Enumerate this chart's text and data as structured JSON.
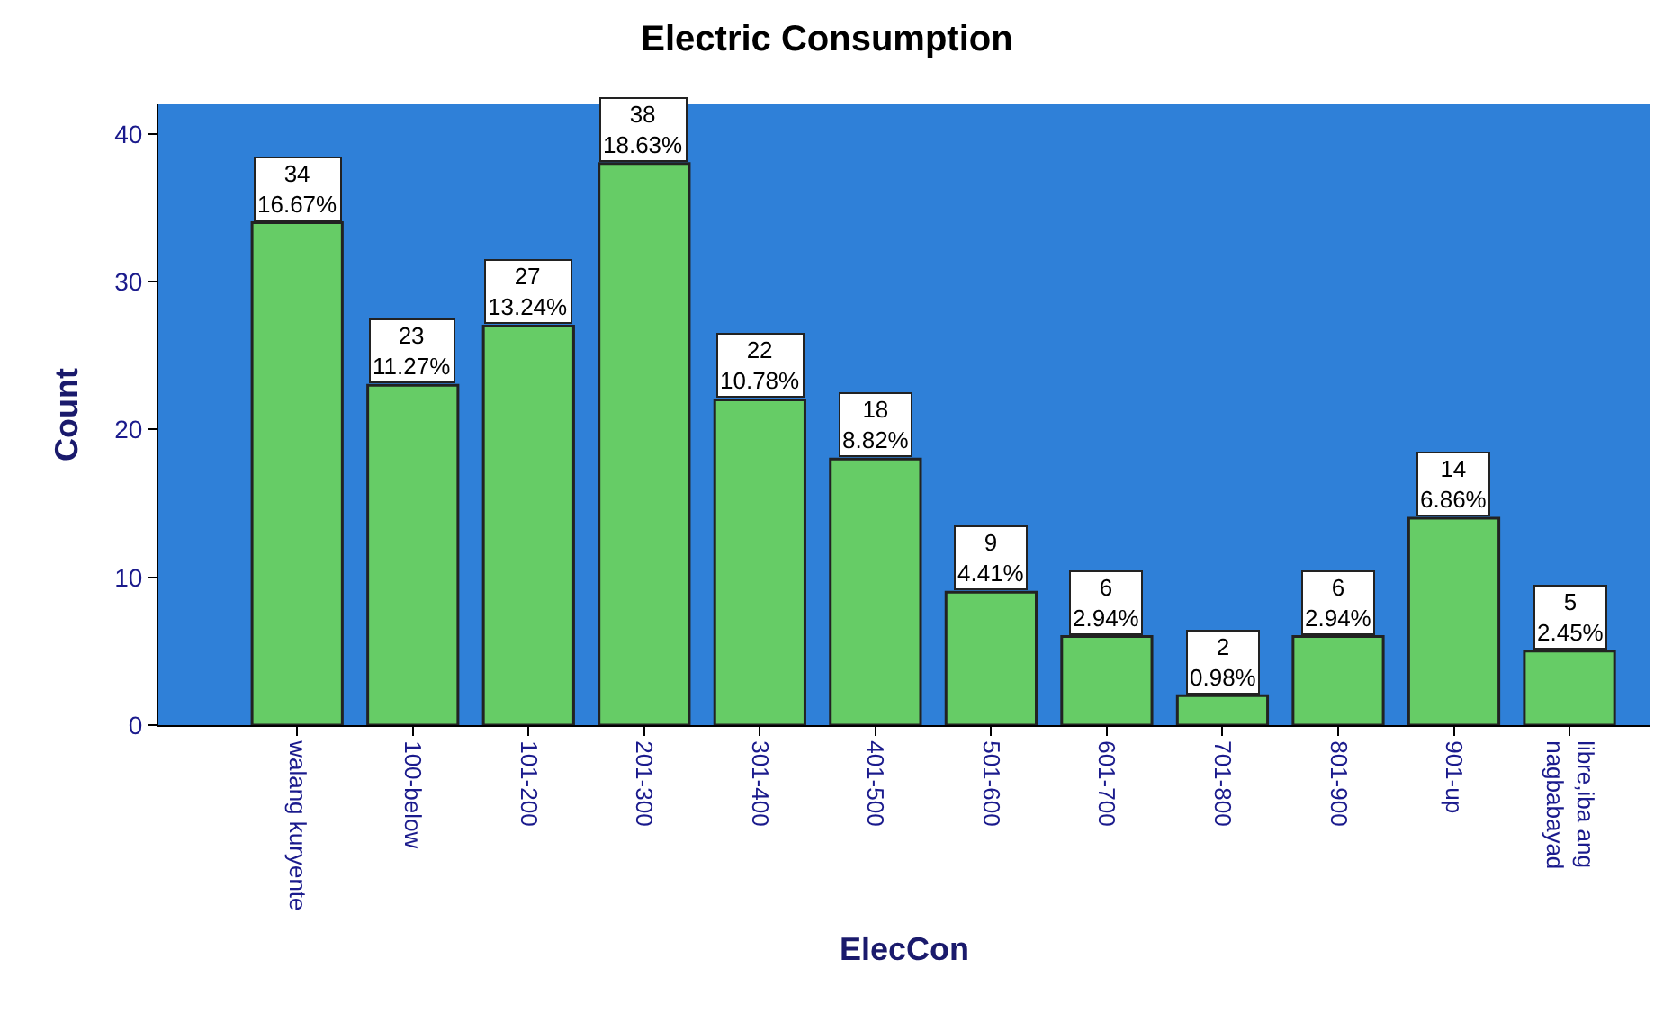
{
  "chart_data": {
    "type": "bar",
    "title": "Electric Consumption",
    "xlabel": "ElecCon",
    "ylabel": "Count",
    "categories": [
      "walang kuryente",
      "100-below",
      "101-200",
      "201-300",
      "301-400",
      "401-500",
      "501-600",
      "601-700",
      "701-800",
      "801-900",
      "901-up",
      "libre,iba ang\nnagbabayad"
    ],
    "values": [
      34,
      23,
      27,
      38,
      22,
      18,
      9,
      6,
      2,
      6,
      14,
      5
    ],
    "value_labels": [
      "34\n16.67%",
      "23\n11.27%",
      "27\n13.24%",
      "38\n18.63%",
      "22\n10.78%",
      "18\n8.82%",
      "9\n4.41%",
      "6\n2.94%",
      "2\n0.98%",
      "6\n2.94%",
      "14\n6.86%",
      "5\n2.45%"
    ],
    "color": "#66cc66",
    "ylim": [
      0,
      42
    ],
    "yticks": [
      0,
      10,
      20,
      30,
      40
    ],
    "grid": false
  }
}
